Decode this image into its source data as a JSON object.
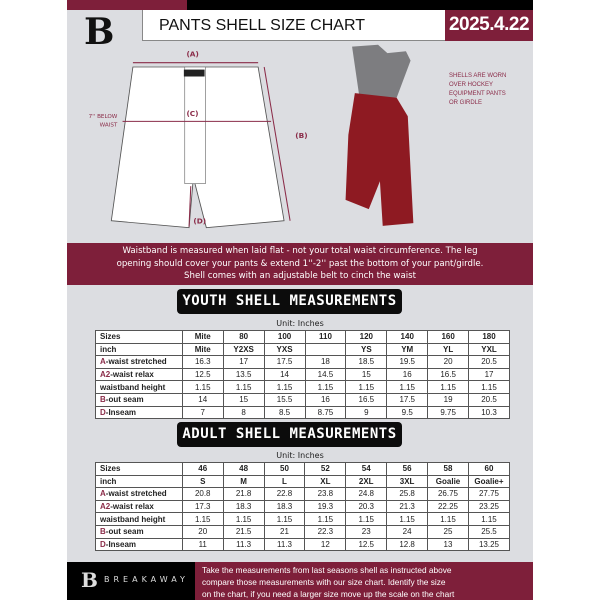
{
  "header": {
    "title": "PANTS SHELL SIZE CHART",
    "date": "2025.4.22",
    "logo": "B"
  },
  "diagram": {
    "label_a": "(A)",
    "label_b": "(B)",
    "label_c": "(C)",
    "label_d": "(D)",
    "c_note_1": "7'' BELOW",
    "c_note_2": "WAIST"
  },
  "photo_note": [
    "SHELLS ARE WORN",
    "OVER HOCKEY",
    "EQUIPMENT PANTS",
    "OR GIRDLE"
  ],
  "banner": [
    "Waistband is measured when laid flat - not your total waist circumference. The leg",
    "opening should cover your pants & extend 1''-2'' past the bottom of your pant/girdle.",
    "Shell comes with an adjustable belt to cinch the waist"
  ],
  "youth": {
    "heading": "YOUTH SHELL MEASUREMENTS",
    "unit": "Unit: Inches",
    "rows": [
      {
        "label": "Sizes",
        "values": [
          "Mite",
          "80",
          "100",
          "110",
          "120",
          "140",
          "160",
          "180"
        ]
      },
      {
        "label": "inch",
        "values": [
          "Mite",
          "Y2XS",
          "YXS",
          "",
          "YS",
          "YM",
          "YL",
          "YXL"
        ]
      },
      {
        "mark": "A",
        "label": "-waist stretched",
        "values": [
          "16.3",
          "17",
          "17.5",
          "18",
          "18.5",
          "19.5",
          "20",
          "20.5"
        ]
      },
      {
        "mark": "A2",
        "label": "-waist relax",
        "values": [
          "12.5",
          "13.5",
          "14",
          "14.5",
          "15",
          "16",
          "16.5",
          "17"
        ]
      },
      {
        "label": "waistband height",
        "values": [
          "1.15",
          "1.15",
          "1.15",
          "1.15",
          "1.15",
          "1.15",
          "1.15",
          "1.15"
        ]
      },
      {
        "mark": "B",
        "label": "-out seam",
        "values": [
          "14",
          "15",
          "15.5",
          "16",
          "16.5",
          "17.5",
          "19",
          "20.5"
        ]
      },
      {
        "mark": "D",
        "label": "-Inseam",
        "values": [
          "7",
          "8",
          "8.5",
          "8.75",
          "9",
          "9.5",
          "9.75",
          "10.3"
        ]
      }
    ]
  },
  "adult": {
    "heading": "ADULT SHELL MEASUREMENTS",
    "unit": "Unit: Inches",
    "rows": [
      {
        "label": "Sizes",
        "values": [
          "46",
          "48",
          "50",
          "52",
          "54",
          "56",
          "58",
          "60"
        ]
      },
      {
        "label": "inch",
        "values": [
          "S",
          "M",
          "L",
          "XL",
          "2XL",
          "3XL",
          "Goalie",
          "Goalie+"
        ]
      },
      {
        "mark": "A",
        "label": "-waist stretched",
        "values": [
          "20.8",
          "21.8",
          "22.8",
          "23.8",
          "24.8",
          "25.8",
          "26.75",
          "27.75"
        ]
      },
      {
        "mark": "A2",
        "label": "-waist relax",
        "values": [
          "17.3",
          "18.3",
          "18.3",
          "19.3",
          "20.3",
          "21.3",
          "22.25",
          "23.25"
        ]
      },
      {
        "label": "waistband height",
        "values": [
          "1.15",
          "1.15",
          "1.15",
          "1.15",
          "1.15",
          "1.15",
          "1.15",
          "1.15"
        ]
      },
      {
        "mark": "B",
        "label": "-out seam",
        "values": [
          "20",
          "21.5",
          "21",
          "22.3",
          "23",
          "24",
          "25",
          "25.5"
        ]
      },
      {
        "mark": "D",
        "label": "-Inseam",
        "values": [
          "11",
          "11.3",
          "11.3",
          "12",
          "12.5",
          "12.8",
          "13",
          "13.25"
        ]
      }
    ]
  },
  "footer": {
    "brand": "BREAKAWAY",
    "text": [
      "Take the measurements from last seasons shell as instructed above",
      "compare those measurements  with our size chart. Identify the size",
      "on the chart, if you need a larger size move up the scale on the chart"
    ]
  },
  "colors": {
    "accent": "#7e1f3a",
    "background": "#dcdde1"
  }
}
